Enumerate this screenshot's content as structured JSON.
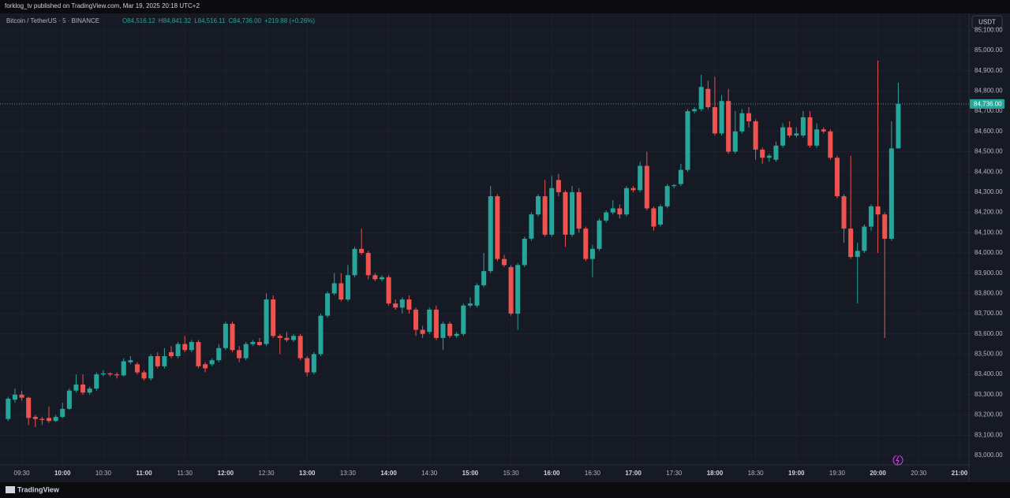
{
  "header": {
    "publisher": "forklog_tv published on TradingView.com, Mar 19, 2025 20:18 UTC+2",
    "footer": "TradingView"
  },
  "chart_data": {
    "type": "candlestick",
    "symbol": "Bitcoin / TetherUS · 5 · BINANCE",
    "legend_values": [
      "O84,516.12",
      "H84,841.32",
      "L84,516.11",
      "C84,736.00",
      "+219.88 (+0.26%)"
    ],
    "currency": "USDT",
    "last_price": {
      "value": 84736,
      "label": "84,736.00"
    },
    "up_color": "#26a69a",
    "down_color": "#ef5350",
    "grid": true,
    "x": [
      "09:20",
      "09:25",
      "09:30",
      "09:35",
      "09:40",
      "09:45",
      "09:50",
      "09:55",
      "10:00",
      "10:05",
      "10:10",
      "10:15",
      "10:20",
      "10:25",
      "10:30",
      "10:35",
      "10:40",
      "10:45",
      "10:50",
      "10:55",
      "11:00",
      "11:05",
      "11:10",
      "11:15",
      "11:20",
      "11:25",
      "11:30",
      "11:35",
      "11:40",
      "11:45",
      "11:50",
      "11:55",
      "12:00",
      "12:05",
      "12:10",
      "12:15",
      "12:20",
      "12:25",
      "12:30",
      "12:35",
      "12:40",
      "12:45",
      "12:50",
      "12:55",
      "13:00",
      "13:05",
      "13:10",
      "13:15",
      "13:20",
      "13:25",
      "13:30",
      "13:35",
      "13:40",
      "13:45",
      "13:50",
      "13:55",
      "14:00",
      "14:05",
      "14:10",
      "14:15",
      "14:20",
      "14:25",
      "14:30",
      "14:35",
      "14:40",
      "14:45",
      "14:50",
      "14:55",
      "15:00",
      "15:05",
      "15:10",
      "15:15",
      "15:20",
      "15:25",
      "15:30",
      "15:35",
      "15:40",
      "15:45",
      "15:50",
      "15:55",
      "16:00",
      "16:05",
      "16:10",
      "16:15",
      "16:20",
      "16:25",
      "16:30",
      "16:35",
      "16:40",
      "16:45",
      "16:50",
      "16:55",
      "17:00",
      "17:05",
      "17:10",
      "17:15",
      "17:20",
      "17:25",
      "17:30",
      "17:35",
      "17:40",
      "17:45",
      "17:50",
      "17:55",
      "18:00",
      "18:05",
      "18:10",
      "18:15",
      "18:20",
      "18:25",
      "18:30",
      "18:35",
      "18:40",
      "18:45",
      "18:50",
      "18:55",
      "19:00",
      "19:05",
      "19:10",
      "19:15",
      "19:20",
      "19:25",
      "19:30",
      "19:35",
      "19:40",
      "19:45",
      "19:50",
      "19:55",
      "20:00",
      "20:05",
      "20:10",
      "20:15"
    ],
    "open": [
      83180,
      83275,
      83300,
      83285,
      83190,
      83180,
      83185,
      83170,
      83190,
      83230,
      83320,
      83350,
      83310,
      83330,
      83400,
      83405,
      83400,
      83395,
      83460,
      83450,
      83410,
      83380,
      83490,
      83440,
      83510,
      83490,
      83550,
      83520,
      83560,
      83450,
      83450,
      83470,
      83530,
      83650,
      83520,
      83480,
      83550,
      83560,
      83550,
      83770,
      83590,
      83580,
      83570,
      83590,
      83480,
      83410,
      83500,
      83690,
      83800,
      83850,
      83770,
      83890,
      84020,
      84000,
      83890,
      83870,
      83880,
      83750,
      83730,
      83770,
      83720,
      83620,
      83610,
      83720,
      83580,
      83650,
      83590,
      83600,
      83740,
      83740,
      83840,
      83910,
      84280,
      83970,
      83930,
      83700,
      83940,
      84070,
      84190,
      84280,
      84090,
      84360,
      84300,
      84090,
      84300,
      84120,
      83970,
      84020,
      84160,
      84200,
      84220,
      84190,
      84320,
      84310,
      84430,
      84220,
      84140,
      84230,
      84330,
      84340,
      84410,
      84700,
      84710,
      84810,
      84720,
      84590,
      84750,
      84500,
      84600,
      84690,
      84650,
      84510,
      84470,
      84460,
      84530,
      84620,
      84580,
      84580,
      84670,
      84530,
      84610,
      84600,
      84470,
      84280,
      84120,
      83980,
      84010,
      84130,
      84230,
      84190,
      84070,
      84516.12
    ],
    "high": [
      83290,
      83330,
      83320,
      83290,
      83200,
      83190,
      83240,
      83200,
      83260,
      83330,
      83400,
      83400,
      83340,
      83410,
      83420,
      83410,
      83410,
      83480,
      83490,
      83460,
      83420,
      83500,
      83510,
      83530,
      83540,
      83560,
      83590,
      83570,
      83570,
      83460,
      83480,
      83550,
      83660,
      83660,
      83540,
      83560,
      83570,
      83580,
      83800,
      83790,
      83600,
      83610,
      83600,
      83600,
      83490,
      83510,
      83700,
      83810,
      83900,
      83900,
      83940,
      84030,
      84120,
      84010,
      83900,
      83890,
      83890,
      83770,
      83780,
      83790,
      83730,
      83640,
      83730,
      83740,
      83660,
      83660,
      83610,
      83750,
      83780,
      83850,
      84000,
      84330,
      84290,
      83990,
      83940,
      83950,
      84080,
      84200,
      84290,
      84360,
      84380,
      84390,
      84310,
      84330,
      84320,
      84130,
      84040,
      84170,
      84210,
      84260,
      84240,
      84330,
      84330,
      84450,
      84500,
      84230,
      84240,
      84340,
      84340,
      84440,
      84710,
      84720,
      84880,
      84850,
      84870,
      84780,
      84810,
      84700,
      84710,
      84720,
      84660,
      84520,
      84490,
      84550,
      84640,
      84650,
      84620,
      84700,
      84700,
      84640,
      84620,
      84610,
      84480,
      84290,
      84480,
      84050,
      84140,
      84240,
      84950,
      84200,
      84650,
      84841.32
    ],
    "low": [
      83170,
      83260,
      83270,
      83150,
      83140,
      83150,
      83160,
      83165,
      83185,
      83225,
      83310,
      83300,
      83300,
      83320,
      83390,
      83390,
      83380,
      83390,
      83450,
      83400,
      83370,
      83370,
      83430,
      83430,
      83480,
      83480,
      83510,
      83510,
      83430,
      83410,
      83440,
      83460,
      83520,
      83510,
      83460,
      83470,
      83540,
      83540,
      83540,
      83580,
      83500,
      83560,
      83560,
      83470,
      83390,
      83400,
      83490,
      83680,
      83790,
      83760,
      83760,
      83880,
      83990,
      83870,
      83860,
      83860,
      83740,
      83720,
      83700,
      83700,
      83590,
      83580,
      83600,
      83570,
      83520,
      83580,
      83580,
      83590,
      83730,
      83730,
      83830,
      83900,
      83960,
      83930,
      83690,
      83620,
      83930,
      84060,
      84180,
      84080,
      84080,
      84280,
      84030,
      84080,
      84100,
      83960,
      83880,
      84010,
      84150,
      84190,
      84170,
      84180,
      84300,
      84300,
      84210,
      84110,
      84130,
      84220,
      84320,
      84330,
      84400,
      84690,
      84700,
      84710,
      84580,
      84580,
      84490,
      84490,
      84590,
      84620,
      84460,
      84440,
      84450,
      84450,
      84520,
      84570,
      84570,
      84570,
      84520,
      84520,
      84590,
      84460,
      84270,
      84050,
      83970,
      83750,
      84000,
      84110,
      84000,
      83580,
      84060,
      84516.11
    ],
    "close": [
      83280,
      83300,
      83285,
      83185,
      83180,
      83175,
      83170,
      83190,
      83230,
      83320,
      83350,
      83310,
      83330,
      83400,
      83405,
      83400,
      83395,
      83465,
      83470,
      83410,
      83380,
      83490,
      83440,
      83490,
      83490,
      83550,
      83520,
      83560,
      83440,
      83430,
      83470,
      83530,
      83650,
      83520,
      83480,
      83550,
      83560,
      83545,
      83770,
      83590,
      83580,
      83570,
      83590,
      83480,
      83410,
      83500,
      83690,
      83800,
      83850,
      83770,
      83890,
      84020,
      84000,
      83890,
      83870,
      83880,
      83750,
      83730,
      83770,
      83720,
      83620,
      83600,
      83720,
      83580,
      83650,
      83590,
      83600,
      83740,
      83750,
      83840,
      83910,
      84280,
      83970,
      83940,
      83700,
      83940,
      84070,
      84190,
      84280,
      84090,
      84320,
      84300,
      84090,
      84300,
      84120,
      83970,
      84020,
      84160,
      84200,
      84220,
      84190,
      84320,
      84310,
      84430,
      84220,
      84130,
      84230,
      84330,
      84335,
      84410,
      84700,
      84710,
      84820,
      84720,
      84590,
      84750,
      84500,
      84600,
      84690,
      84650,
      84510,
      84470,
      84480,
      84530,
      84620,
      84580,
      84590,
      84670,
      84530,
      84610,
      84600,
      84470,
      84280,
      84120,
      83980,
      84010,
      84130,
      84230,
      84190,
      84070,
      84516.12,
      84736
    ],
    "xlim": [
      "09:14",
      "21:07"
    ],
    "xticks": [
      "09:30",
      "10:00",
      "10:30",
      "11:00",
      "11:30",
      "12:00",
      "12:30",
      "13:00",
      "13:30",
      "14:00",
      "14:30",
      "15:00",
      "15:30",
      "16:00",
      "16:30",
      "17:00",
      "17:30",
      "18:00",
      "18:30",
      "19:00",
      "19:30",
      "20:00",
      "20:30",
      "21:00"
    ],
    "ylim": [
      82953,
      85109
    ],
    "yticks": [
      {
        "value": 83000,
        "label": "83,000.00"
      },
      {
        "value": 83100,
        "label": "83,100.00"
      },
      {
        "value": 83200,
        "label": "83,200.00"
      },
      {
        "value": 83300,
        "label": "83,300.00"
      },
      {
        "value": 83400,
        "label": "83,400.00"
      },
      {
        "value": 83500,
        "label": "83,500.00"
      },
      {
        "value": 83600,
        "label": "83,600.00"
      },
      {
        "value": 83700,
        "label": "83,700.00"
      },
      {
        "value": 83800,
        "label": "83,800.00"
      },
      {
        "value": 83900,
        "label": "83,900.00"
      },
      {
        "value": 84000,
        "label": "84,000.00"
      },
      {
        "value": 84100,
        "label": "84,100.00"
      },
      {
        "value": 84200,
        "label": "84,200.00"
      },
      {
        "value": 84300,
        "label": "84,300.00"
      },
      {
        "value": 84400,
        "label": "84,400.00"
      },
      {
        "value": 84500,
        "label": "84,500.00"
      },
      {
        "value": 84600,
        "label": "84,600.00"
      },
      {
        "value": 84700,
        "label": "84,700.00"
      },
      {
        "value": 84800,
        "label": "84,800.00"
      },
      {
        "value": 84900,
        "label": "84,900.00"
      },
      {
        "value": 85000,
        "label": "85,000.00"
      },
      {
        "value": 85100,
        "label": "85,100.00"
      }
    ]
  }
}
